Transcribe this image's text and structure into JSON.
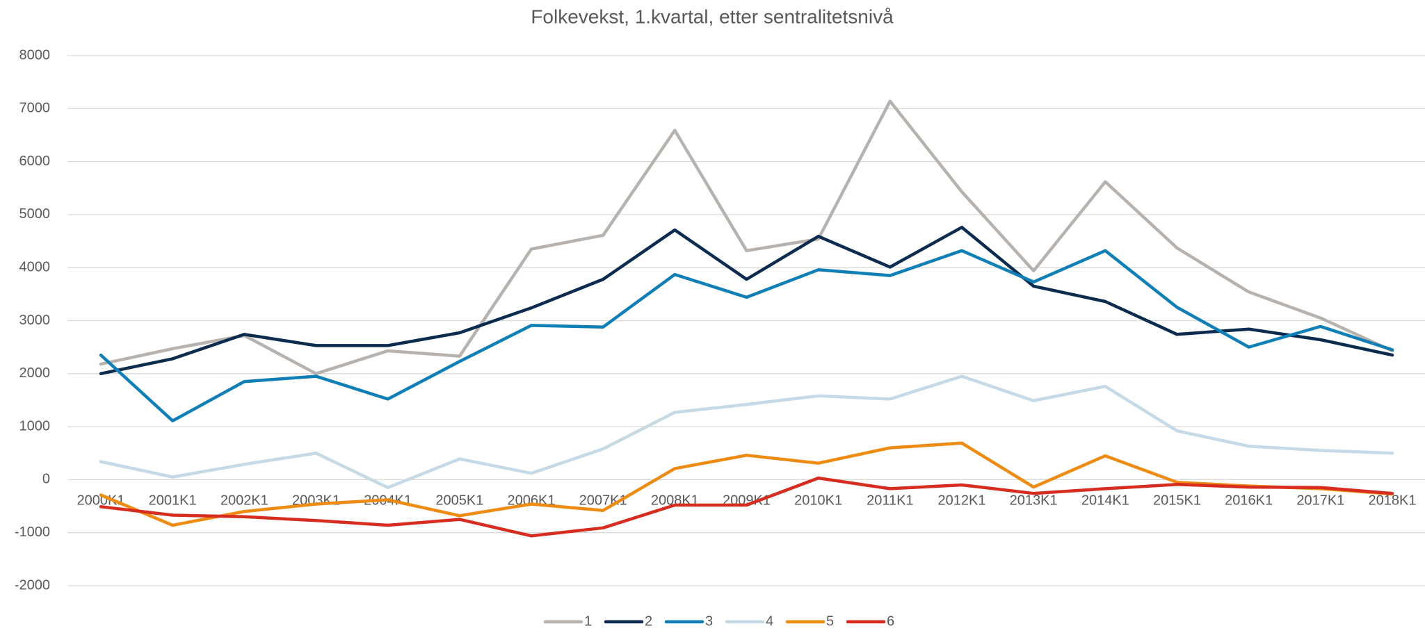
{
  "chart_data": {
    "type": "line",
    "title": "Folkevekst, 1.kvartal, etter sentralitetsnivå",
    "categories": [
      "2000K1",
      "2001K1",
      "2002K1",
      "2003K1",
      "2004K1",
      "2005K1",
      "2006K1",
      "2007K1",
      "2008K1",
      "2009K1",
      "2010K1",
      "2011K1",
      "2012K1",
      "2013K1",
      "2014K1",
      "2015K1",
      "2016K1",
      "2017K1",
      "2018K1"
    ],
    "series": [
      {
        "name": "1",
        "color": "#b7b2ad",
        "values": [
          2180,
          2470,
          2720,
          2000,
          2430,
          2330,
          4350,
          4610,
          6590,
          4320,
          4540,
          7140,
          5430,
          3940,
          5620,
          4370,
          3540,
          3050,
          2430
        ]
      },
      {
        "name": "2",
        "color": "#0b2c4e",
        "values": [
          2000,
          2280,
          2740,
          2530,
          2530,
          2770,
          3240,
          3780,
          4710,
          3780,
          4590,
          4010,
          4760,
          3650,
          3360,
          2740,
          2840,
          2640,
          2350
        ]
      },
      {
        "name": "3",
        "color": "#0f7fb5",
        "values": [
          2350,
          1110,
          1850,
          1950,
          1520,
          2230,
          2910,
          2880,
          3870,
          3440,
          3960,
          3850,
          4320,
          3730,
          4320,
          3250,
          2500,
          2890,
          2450
        ]
      },
      {
        "name": "4",
        "color": "#c5d9e6",
        "values": [
          340,
          50,
          290,
          500,
          -150,
          390,
          120,
          580,
          1270,
          1420,
          1580,
          1520,
          1950,
          1490,
          1760,
          920,
          630,
          550,
          500
        ]
      },
      {
        "name": "5",
        "color": "#ed8b12",
        "values": [
          -290,
          -860,
          -600,
          -460,
          -380,
          -680,
          -460,
          -580,
          210,
          460,
          310,
          600,
          690,
          -140,
          450,
          -50,
          -120,
          -170,
          -270
        ]
      },
      {
        "name": "6",
        "color": "#d62d20",
        "values": [
          -510,
          -670,
          -700,
          -770,
          -860,
          -750,
          -1060,
          -910,
          -480,
          -480,
          30,
          -170,
          -100,
          -260,
          -170,
          -90,
          -140,
          -150,
          -260
        ]
      }
    ],
    "ylim": [
      -2000,
      8000
    ],
    "yticks": [
      -2000,
      -1000,
      0,
      1000,
      2000,
      3000,
      4000,
      5000,
      6000,
      7000,
      8000
    ],
    "grid": true,
    "legend": "bottom"
  }
}
